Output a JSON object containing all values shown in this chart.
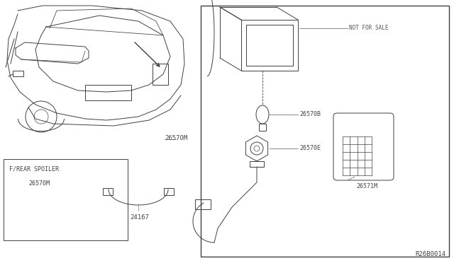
{
  "bg_color": "#ffffff",
  "line_color": "#404040",
  "fig_width": 6.4,
  "fig_height": 3.72,
  "dpi": 100,
  "diagram_ref": "R26B0014",
  "labels": {
    "26570M_main": "26570M",
    "26570B": "26570B",
    "26570E": "26570E",
    "26571M": "26571M",
    "26570M_spoiler": "26570M",
    "24167": "24167",
    "not_for_sale": "NOT FOR SALE",
    "f_rear_spoiler": "F/REAR SPOILER"
  }
}
